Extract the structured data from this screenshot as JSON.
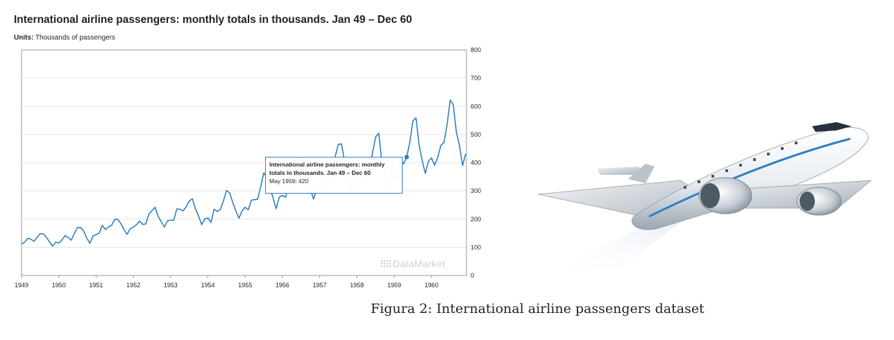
{
  "header": {
    "title": "International airline passengers: monthly totals in thousands. Jan 49 – Dec 60",
    "units_label": "Units:",
    "units_value": "Thousands of passengers"
  },
  "tooltip": {
    "title": "International airline passengers: monthly totals in thousands. Jan 49 – Dec 60",
    "value_text": "May 1959: 420"
  },
  "watermark": "DataMarket",
  "caption": "Figura 2: International airline passengers dataset",
  "colors": {
    "line": "#2f7fbf",
    "grid": "#e5e5e5",
    "axis": "#999999"
  },
  "illustration": "airplane",
  "chart_data": {
    "type": "line",
    "title": "International airline passengers: monthly totals in thousands. Jan 49 – Dec 60",
    "subtitle": "Units: Thousands of passengers",
    "x_start": 1949,
    "x_frequency": "monthly",
    "x_ticks": [
      "1949",
      "1950",
      "1951",
      "1952",
      "1953",
      "1954",
      "1955",
      "1956",
      "1957",
      "1958",
      "1959",
      "1960"
    ],
    "y_ticks": [
      0,
      100,
      200,
      300,
      400,
      500,
      600,
      700,
      800
    ],
    "ylim": [
      0,
      800
    ],
    "y_axis_side": "right",
    "grid": true,
    "highlight": {
      "label": "May 1959",
      "value": 420
    },
    "series": [
      {
        "values": [
          112,
          118,
          132,
          129,
          121,
          135,
          148,
          148,
          136,
          119,
          104,
          118,
          115,
          126,
          141,
          135,
          125,
          149,
          170,
          170,
          158,
          133,
          114,
          140,
          145,
          150,
          178,
          163,
          172,
          178,
          199,
          199,
          184,
          162,
          146,
          166,
          171,
          180,
          193,
          181,
          183,
          218,
          230,
          242,
          209,
          191,
          172,
          194,
          196,
          196,
          236,
          235,
          229,
          243,
          264,
          272,
          237,
          211,
          180,
          201,
          204,
          188,
          235,
          227,
          234,
          264,
          302,
          293,
          259,
          229,
          203,
          229,
          242,
          233,
          267,
          269,
          270,
          315,
          364,
          347,
          312,
          274,
          237,
          278,
          284,
          277,
          317,
          313,
          318,
          374,
          413,
          405,
          355,
          306,
          271,
          306,
          315,
          301,
          356,
          348,
          355,
          422,
          465,
          467,
          404,
          347,
          305,
          336,
          340,
          318,
          362,
          348,
          363,
          435,
          491,
          505,
          404,
          359,
          310,
          337,
          360,
          342,
          406,
          396,
          420,
          472,
          548,
          559,
          463,
          407,
          362,
          405,
          417,
          391,
          419,
          461,
          472,
          535,
          622,
          606,
          508,
          461,
          390,
          432
        ]
      }
    ]
  }
}
